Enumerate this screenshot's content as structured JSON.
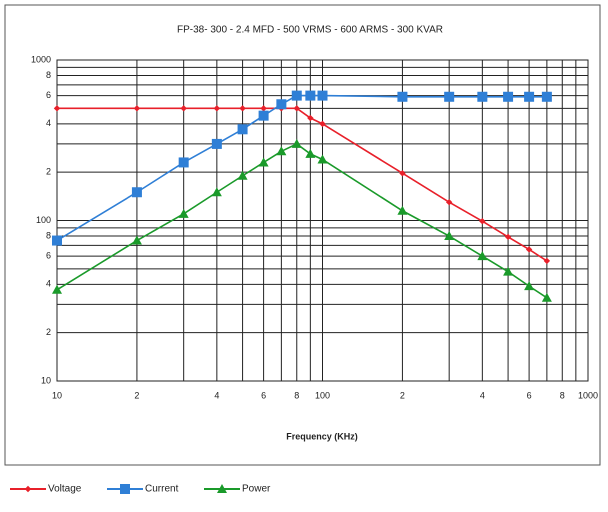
{
  "chart_data": {
    "type": "line",
    "title": "FP-38- 300 - 2.4 MFD - 500 VRMS - 600 ARMS - 300 KVAR",
    "x_label": "Frequency (KHz)",
    "x_scale": "log",
    "y_scale": "log",
    "xlim": [
      10,
      1000
    ],
    "ylim": [
      10,
      1000
    ],
    "xticks": [
      10,
      {
        "value": 20,
        "label": "2"
      },
      {
        "value": 40,
        "label": "4"
      },
      {
        "value": 60,
        "label": "6"
      },
      {
        "value": 80,
        "label": "8"
      },
      100,
      {
        "value": 200,
        "label": "2"
      },
      {
        "value": 400,
        "label": "4"
      },
      {
        "value": 600,
        "label": "6"
      },
      {
        "value": 800,
        "label": "8"
      },
      1000
    ],
    "xminor_ticks": [
      30,
      50,
      70,
      90,
      300,
      500,
      700,
      900
    ],
    "yticks": [
      10,
      {
        "value": 20,
        "label": "2"
      },
      {
        "value": 40,
        "label": "4"
      },
      {
        "value": 60,
        "label": "6"
      },
      {
        "value": 80,
        "label": "8"
      },
      100,
      {
        "value": 200,
        "label": "2"
      },
      {
        "value": 400,
        "label": "4"
      },
      {
        "value": 600,
        "label": "6"
      },
      {
        "value": 800,
        "label": "8"
      },
      1000
    ],
    "yminor_ticks": [
      30,
      50,
      70,
      90,
      300,
      500,
      700,
      900
    ],
    "grid": true,
    "legend": "bottom",
    "x": [
      10,
      20,
      30,
      40,
      50,
      60,
      70,
      80,
      90,
      100,
      200,
      300,
      400,
      500,
      600,
      700
    ],
    "series": [
      {
        "name": "Voltage",
        "color": "#e8202a",
        "marker": "diamond",
        "values": [
          500,
          500,
          500,
          500,
          500,
          500,
          500,
          500,
          435,
          400,
          197,
          130,
          99,
          79,
          66,
          56
        ]
      },
      {
        "name": "Current",
        "color": "#2f7fd6",
        "marker": "square",
        "values": [
          75,
          150,
          230,
          300,
          370,
          450,
          530,
          600,
          600,
          600,
          590,
          590,
          590,
          590,
          590,
          590
        ]
      },
      {
        "name": "Power",
        "color": "#1a9a2a",
        "marker": "triangle",
        "values": [
          37,
          75,
          110,
          150,
          190,
          230,
          270,
          300,
          260,
          240,
          115,
          80,
          60,
          48,
          39,
          33
        ]
      }
    ]
  }
}
